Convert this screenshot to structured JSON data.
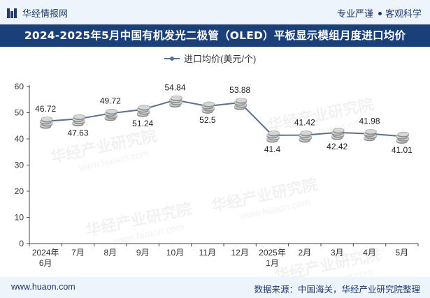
{
  "header": {
    "site_name": "华经情报网",
    "tag_1": "专业严谨",
    "tag_2": "客观科学"
  },
  "title": "2024-2025年5月中国有机发光二极管（OLED）平板显示模组月度进口均价",
  "footer": {
    "website": "www.huaon.com",
    "source": "数据来源：中国海关，华经产业研究院整理"
  },
  "watermark": {
    "name": "华经产业研究院",
    "url": "www.huaon.com"
  },
  "colors": {
    "title_bg": "#1b3f78",
    "line": "#5b6f93",
    "band_bg": "#eef4fb",
    "text_dark": "#1f3a6b"
  },
  "chart_data": {
    "type": "line",
    "categories": [
      "2024年\n6月",
      "7月",
      "8月",
      "9月",
      "10月",
      "11月",
      "12月",
      "2025年\n1月",
      "2月",
      "3月",
      "4月",
      "5月"
    ],
    "series": [
      {
        "name": "进口均价(美元/个)",
        "values": [
          46.72,
          47.63,
          49.72,
          51.24,
          54.84,
          52.5,
          53.88,
          41.4,
          41.42,
          42.42,
          41.98,
          41.01
        ],
        "labels": [
          "46.72",
          "47.63",
          "49.72",
          "51.24",
          "54.84",
          "52.5",
          "53.88",
          "41.4",
          "41.42",
          "42.42",
          "41.98",
          "41.01"
        ],
        "label_side": [
          "above",
          "below",
          "above",
          "below",
          "above",
          "below",
          "above",
          "below",
          "above",
          "below",
          "above",
          "below"
        ]
      }
    ],
    "y_ticks": [
      "0",
      "10",
      "20",
      "30",
      "40",
      "50",
      "60"
    ],
    "ylim": [
      0,
      60
    ],
    "grid": false,
    "legend": "top-center",
    "marker": "coin-stack"
  }
}
